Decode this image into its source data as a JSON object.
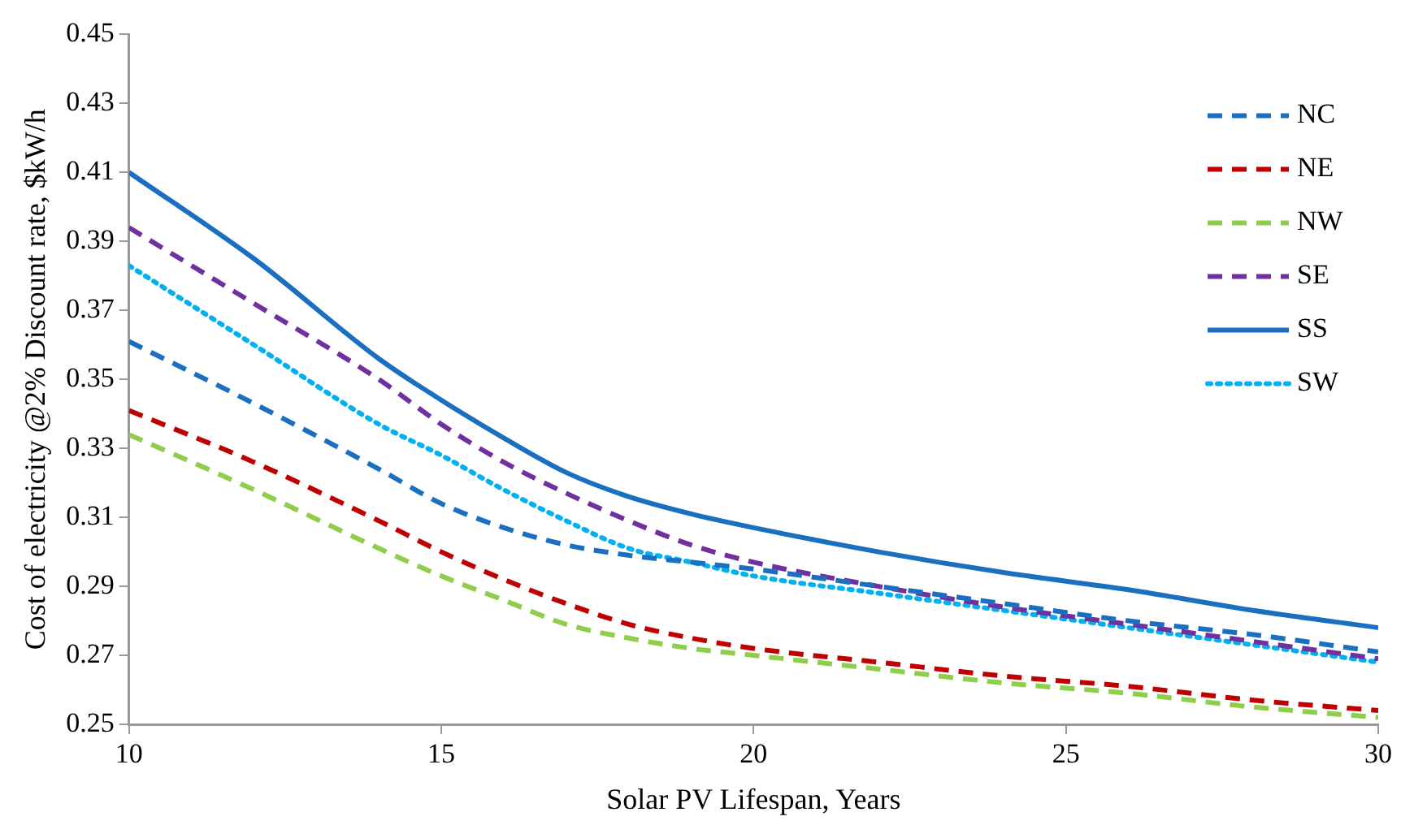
{
  "chart_data": {
    "type": "line",
    "xlabel": "Solar PV Lifespan, Years",
    "ylabel": "Cost of electricity @2% Discount rate, $kW/h",
    "xlim": [
      10,
      30
    ],
    "xticks": [
      10,
      15,
      20,
      25,
      30
    ],
    "ylim": [
      0.25,
      0.45
    ],
    "yticks": [
      0.25,
      0.27,
      0.29,
      0.31,
      0.33,
      0.35,
      0.37,
      0.39,
      0.41,
      0.43,
      0.45
    ],
    "grid": false,
    "legend": "top right",
    "marker": "none",
    "x": [
      10,
      12,
      14,
      15,
      16,
      17,
      18,
      19,
      20,
      22,
      24,
      26,
      28,
      30
    ],
    "series": [
      {
        "name": "NC",
        "color": "#1a6fc0",
        "line_style": "dashed",
        "values": [
          0.361,
          0.343,
          0.324,
          0.314,
          0.307,
          0.302,
          0.299,
          0.297,
          0.295,
          0.29,
          0.285,
          0.28,
          0.276,
          0.271
        ]
      },
      {
        "name": "NE",
        "color": "#c00000",
        "line_style": "dashed",
        "values": [
          0.341,
          0.326,
          0.309,
          0.3,
          0.292,
          0.285,
          0.279,
          0.275,
          0.272,
          0.268,
          0.264,
          0.261,
          0.257,
          0.254
        ]
      },
      {
        "name": "NW",
        "color": "#8fce4a",
        "line_style": "dashed",
        "values": [
          0.334,
          0.318,
          0.301,
          0.293,
          0.286,
          0.279,
          0.275,
          0.272,
          0.27,
          0.266,
          0.262,
          0.259,
          0.255,
          0.252
        ]
      },
      {
        "name": "SE",
        "color": "#7030a0",
        "line_style": "dashed",
        "values": [
          0.394,
          0.372,
          0.35,
          0.337,
          0.326,
          0.317,
          0.309,
          0.302,
          0.297,
          0.29,
          0.284,
          0.279,
          0.274,
          0.269
        ]
      },
      {
        "name": "SS",
        "color": "#1a6fc0",
        "line_style": "solid",
        "values": [
          0.41,
          0.385,
          0.356,
          0.344,
          0.333,
          0.323,
          0.316,
          0.311,
          0.307,
          0.3,
          0.294,
          0.289,
          0.283,
          0.278
        ]
      },
      {
        "name": "SW",
        "color": "#00b0f0",
        "line_style": "dotted",
        "values": [
          0.383,
          0.36,
          0.337,
          0.328,
          0.318,
          0.309,
          0.301,
          0.297,
          0.293,
          0.288,
          0.283,
          0.278,
          0.273,
          0.268
        ]
      }
    ]
  }
}
